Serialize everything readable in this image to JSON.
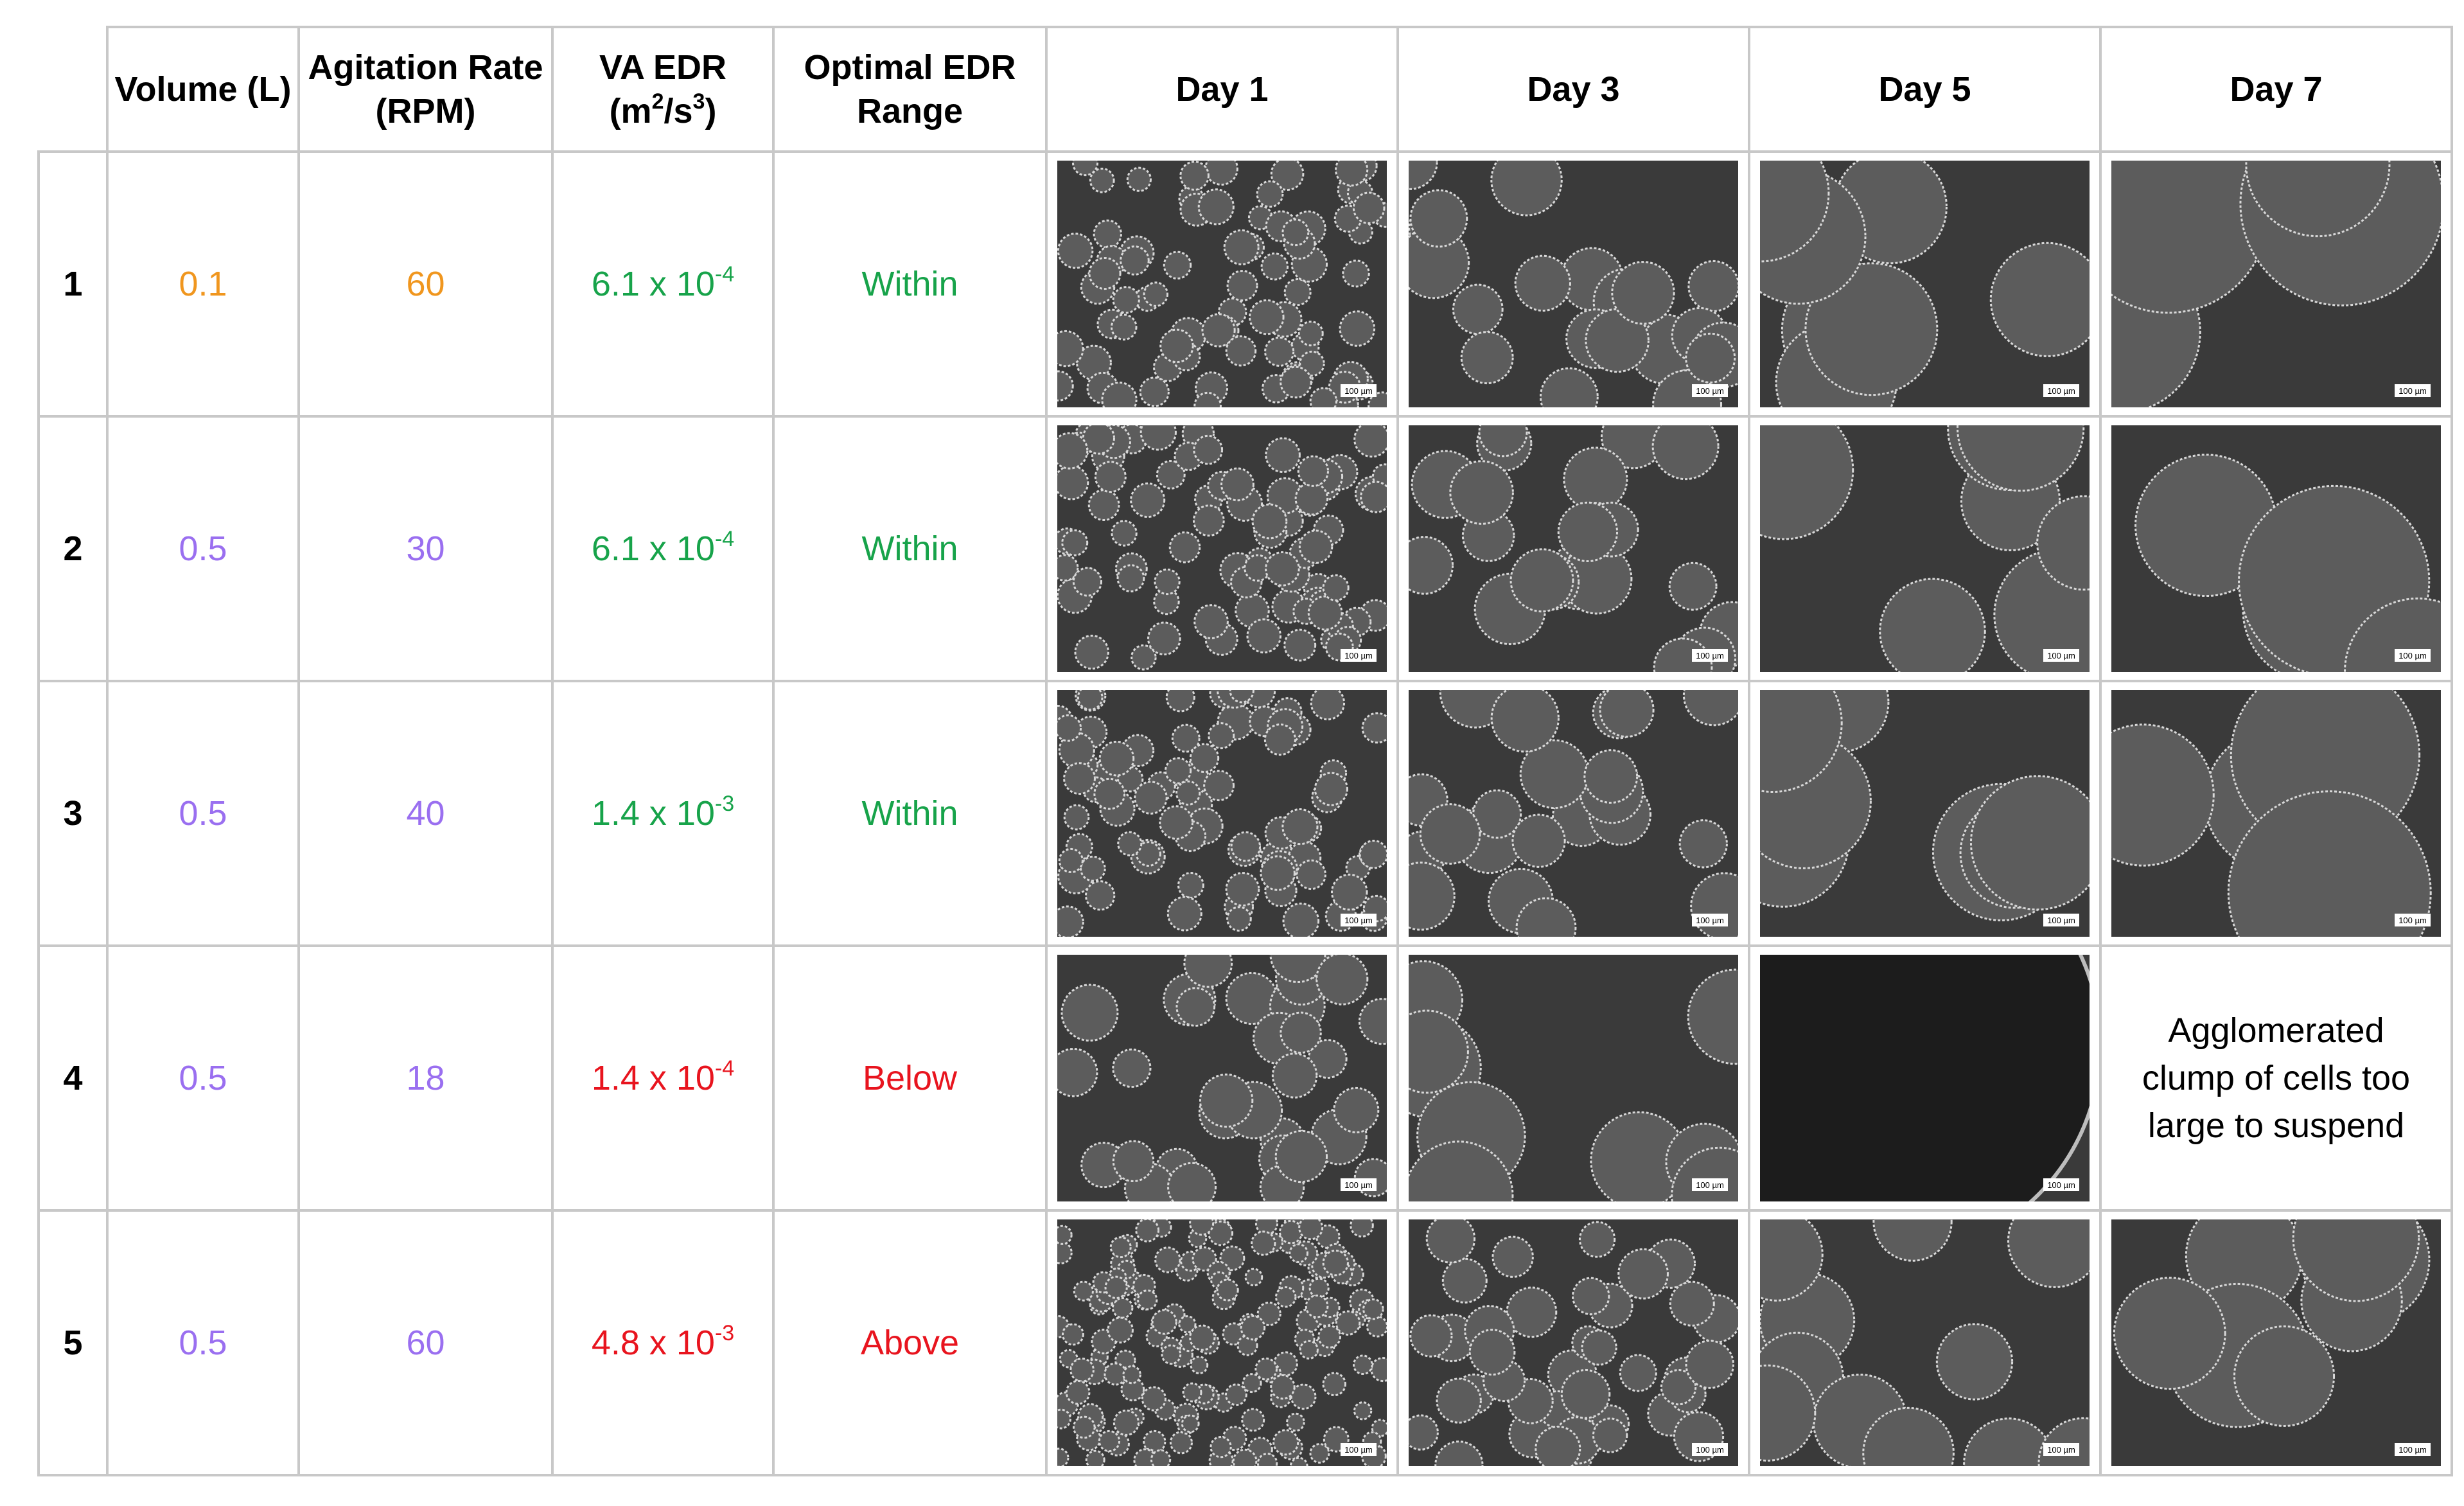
{
  "header": {
    "columns": [
      [
        "Volume (L)"
      ],
      [
        "Agitation Rate (RPM)"
      ],
      [
        "VA EDR (m",
        "2",
        "/s",
        "3",
        ")"
      ],
      [
        "Optimal EDR Range"
      ],
      [
        "Day 1"
      ],
      [
        "Day 3"
      ],
      [
        "Day 5"
      ],
      [
        "Day 7"
      ]
    ]
  },
  "rows": [
    {
      "id": "1",
      "volume": "0.1",
      "rate": "60",
      "setting_color": "#f0961e",
      "edr": [
        "6.1 x 10",
        "-4"
      ],
      "range": "Within",
      "range_color": "#17a34a",
      "days": [
        "100 µm",
        "100 µm",
        "100 µm",
        "100 µm"
      ]
    },
    {
      "id": "2",
      "volume": "0.5",
      "rate": "30",
      "setting_color": "#9a6ff0",
      "edr": [
        "6.1 x 10",
        "-4"
      ],
      "range": "Within",
      "range_color": "#17a34a",
      "days": [
        "100 µm",
        "100 µm",
        "100 µm",
        "100 µm"
      ]
    },
    {
      "id": "3",
      "volume": "0.5",
      "rate": "40",
      "setting_color": "#9a6ff0",
      "edr": [
        "1.4 x 10",
        "-3"
      ],
      "range": "Within",
      "range_color": "#17a34a",
      "days": [
        "100 µm",
        "100 µm",
        "100 µm",
        "100 µm"
      ]
    },
    {
      "id": "4",
      "volume": "0.5",
      "rate": "18",
      "setting_color": "#9a6ff0",
      "edr": [
        "1.4 x 10",
        "-4"
      ],
      "range": "Below",
      "range_color": "#e8141e",
      "days": [
        "100 µm",
        "100 µm",
        "100 µm"
      ],
      "note": "Agglomerated clump of cells too large to suspend"
    },
    {
      "id": "5",
      "volume": "0.5",
      "rate": "60",
      "setting_color": "#9a6ff0",
      "edr": [
        "4.8 x 10",
        "-3"
      ],
      "range": "Above",
      "range_color": "#e8141e",
      "days": [
        "100 µm",
        "100 µm",
        "100 µm",
        "100 µm"
      ]
    }
  ]
}
